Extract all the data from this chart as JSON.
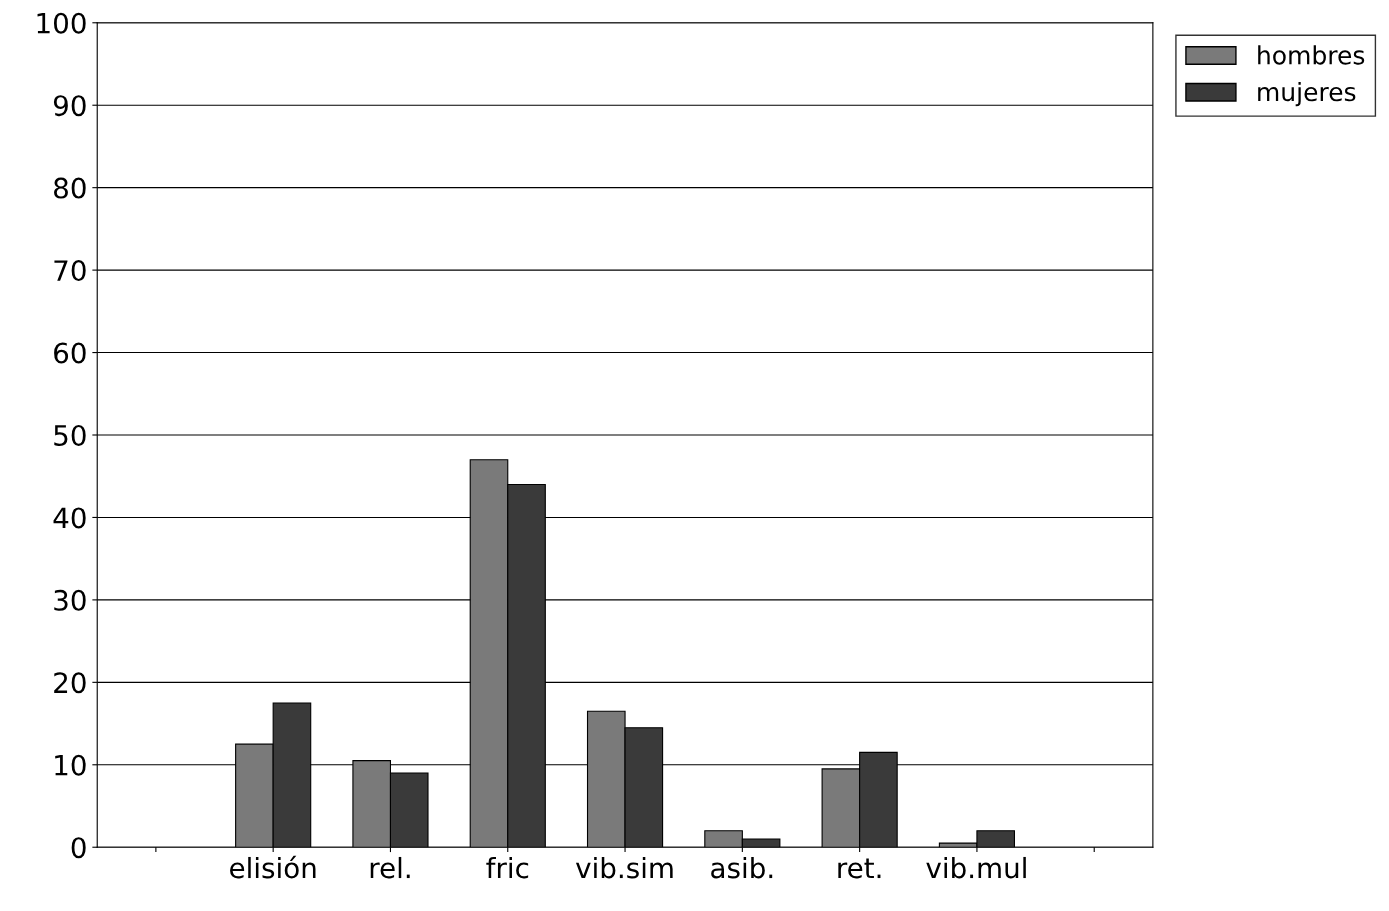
{
  "chart_data": {
    "type": "bar",
    "categories": [
      null,
      "elisión",
      "rel.",
      "fric",
      "vib.sim",
      "asib.",
      "ret.",
      "vib.mul",
      null
    ],
    "series": [
      {
        "name": "hombres",
        "color": "#7a7a7a",
        "values": [
          null,
          12.5,
          10.5,
          47,
          16.5,
          2,
          9.5,
          0.5,
          null
        ]
      },
      {
        "name": "mujeres",
        "color": "#3a3a3a",
        "values": [
          null,
          17.5,
          9,
          44,
          14.5,
          1,
          11.5,
          2,
          null
        ]
      }
    ],
    "ylim": [
      0,
      100
    ],
    "yticks": [
      0,
      10,
      20,
      30,
      40,
      50,
      60,
      70,
      80,
      90,
      100
    ],
    "grid": "y",
    "legend": "top right"
  }
}
